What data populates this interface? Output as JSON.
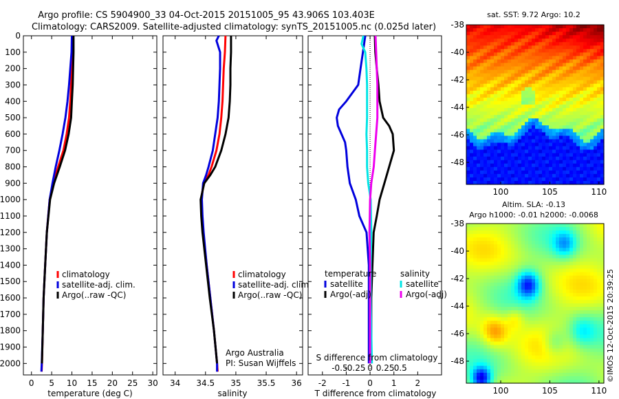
{
  "header": {
    "line1": "Argo profile: CS 5904900_33 04-Oct-2015 20151005_95 43.906S 103.403E",
    "line2": "Climatology: CARS2009. Satellite-adjusted climatology: synTS_20151005.nc (0.025d later)"
  },
  "credit": "©IMOS 12-Oct-2015 20:39:25",
  "colors": {
    "climatology": "#ff0000",
    "satellite": "#0000dd",
    "argo": "#000000",
    "satellite_s": "#00e5e5",
    "argo_s": "#ee00ee"
  },
  "chart_data": [
    {
      "id": "temperature",
      "type": "line",
      "xlabel": "temperature (deg C)",
      "ylabel": "",
      "xlim": [
        -2,
        31
      ],
      "ylim": [
        2070,
        0
      ],
      "xticks": [
        0,
        5,
        10,
        15,
        20,
        25,
        30
      ],
      "xtick_labels": [
        "0",
        "5",
        "10",
        "15",
        "20",
        "25",
        "30"
      ],
      "yticks": [
        0,
        100,
        200,
        300,
        400,
        500,
        600,
        700,
        800,
        900,
        1000,
        1100,
        1200,
        1300,
        1400,
        1500,
        1600,
        1700,
        1800,
        1900,
        2000
      ],
      "ytick_labels": [
        "0",
        "100",
        "200",
        "300",
        "400",
        "500",
        "600",
        "700",
        "800",
        "900",
        "1000",
        "1100",
        "1200",
        "1300",
        "1400",
        "1500",
        "1600",
        "1700",
        "1800",
        "1900",
        "2000"
      ],
      "legend": [
        "climatology",
        "satellite-adj. clim.",
        "Argo(..raw -QC)"
      ],
      "legend_loc": "lower left",
      "series": [
        {
          "name": "climatology",
          "color": "#ff0000",
          "depth": [
            0,
            100,
            200,
            300,
            400,
            500,
            600,
            700,
            800,
            900,
            1000,
            1200,
            1400,
            1600,
            1800,
            2000,
            2050
          ],
          "values": [
            10.2,
            10.2,
            10.0,
            9.8,
            9.6,
            9.3,
            8.7,
            7.9,
            6.6,
            5.4,
            4.5,
            3.8,
            3.4,
            3.0,
            2.8,
            2.6,
            2.5
          ]
        },
        {
          "name": "satellite-adj. clim.",
          "color": "#0000dd",
          "depth": [
            0,
            100,
            200,
            300,
            400,
            500,
            600,
            700,
            800,
            900,
            1000,
            1200,
            1400,
            1600,
            1800,
            2000,
            2050
          ],
          "values": [
            10.0,
            9.9,
            9.6,
            9.3,
            8.9,
            8.4,
            7.7,
            6.9,
            6.0,
            5.2,
            4.5,
            3.8,
            3.4,
            3.0,
            2.8,
            2.55,
            2.45
          ]
        },
        {
          "name": "Argo(..raw -QC)",
          "color": "#000000",
          "depth": [
            0,
            100,
            200,
            300,
            400,
            500,
            600,
            700,
            800,
            900,
            1000,
            1200,
            1400,
            1600,
            1800,
            2000
          ],
          "values": [
            10.4,
            10.4,
            10.3,
            10.2,
            10.0,
            9.8,
            9.2,
            8.3,
            7.0,
            5.6,
            4.6,
            3.8,
            3.4,
            3.0,
            2.8,
            2.6
          ]
        }
      ]
    },
    {
      "id": "salinity",
      "type": "line",
      "xlabel": "salinity",
      "ylabel": "",
      "xlim": [
        33.8,
        36.1
      ],
      "ylim": [
        2070,
        0
      ],
      "xticks": [
        34,
        34.5,
        35,
        35.5,
        36
      ],
      "xtick_labels": [
        "34",
        "34.5",
        "35",
        "35.5",
        "36"
      ],
      "legend": [
        "climatology",
        "satellite-adj. clim.",
        "Argo(..raw -QC)"
      ],
      "legend_loc": "lower left",
      "annotation": [
        "Argo Australia",
        "PI: Susan Wijffels"
      ],
      "series": [
        {
          "name": "climatology",
          "color": "#ff0000",
          "depth": [
            0,
            100,
            200,
            300,
            400,
            500,
            600,
            700,
            800,
            850,
            900,
            1000,
            1100,
            1200,
            1400,
            1600,
            1800,
            2000,
            2050
          ],
          "values": [
            34.83,
            34.82,
            34.8,
            34.79,
            34.78,
            34.76,
            34.73,
            34.68,
            34.6,
            34.55,
            34.47,
            34.43,
            34.44,
            34.46,
            34.52,
            34.58,
            34.64,
            34.69,
            34.7
          ]
        },
        {
          "name": "satellite-adj. clim.",
          "color": "#0000dd",
          "depth": [
            0,
            30,
            100,
            200,
            300,
            400,
            500,
            600,
            700,
            800,
            850,
            900,
            1000,
            1100,
            1200,
            1400,
            1600,
            1800,
            2000,
            2050
          ],
          "values": [
            34.72,
            34.68,
            34.74,
            34.74,
            34.73,
            34.72,
            34.7,
            34.66,
            34.62,
            34.55,
            34.51,
            34.46,
            34.44,
            34.45,
            34.47,
            34.52,
            34.58,
            34.64,
            34.69,
            34.69
          ]
        },
        {
          "name": "Argo(..raw -QC)",
          "color": "#000000",
          "depth": [
            0,
            100,
            200,
            300,
            400,
            500,
            600,
            700,
            800,
            850,
            900,
            1000,
            1100,
            1200,
            1400,
            1600,
            1800,
            2000
          ],
          "values": [
            34.92,
            34.92,
            34.91,
            34.91,
            34.9,
            34.88,
            34.83,
            34.76,
            34.66,
            34.58,
            34.48,
            34.42,
            34.43,
            34.45,
            34.51,
            34.57,
            34.64,
            34.69
          ]
        }
      ]
    },
    {
      "id": "difference",
      "type": "line",
      "xlabel": "T difference from climatology",
      "top_label": "S difference from climatology",
      "ylabel": "",
      "xlim": [
        -2.6,
        3
      ],
      "ylim": [
        2070,
        0
      ],
      "xticks": [
        -2,
        -1,
        0,
        1,
        2
      ],
      "xtick_labels": [
        "-2",
        "-1",
        "0",
        "1",
        "2"
      ],
      "s_ticks": [
        -0.5,
        -0.25,
        0,
        0.25,
        0.5
      ],
      "s_tick_labels": [
        "-0.5",
        "-0.25",
        "0",
        "0.25",
        "0.5"
      ],
      "legend_groups": [
        {
          "title": "temperature",
          "items": [
            "satellite",
            "Argo(-adj)"
          ]
        },
        {
          "title": "salinity",
          "items": [
            "satellite",
            "Argo(-adj)"
          ]
        }
      ],
      "series": [
        {
          "name": "satellite",
          "group": "temperature",
          "color": "#0000dd",
          "depth": [
            0,
            100,
            200,
            300,
            400,
            450,
            500,
            550,
            600,
            650,
            700,
            800,
            900,
            1000,
            1100,
            1200,
            1400,
            1600,
            1800,
            2000
          ],
          "values": [
            -0.2,
            -0.3,
            -0.4,
            -0.5,
            -1.0,
            -1.3,
            -1.4,
            -1.35,
            -1.2,
            -1.05,
            -1.0,
            -0.95,
            -0.85,
            -0.6,
            -0.45,
            -0.15,
            -0.05,
            -0.05,
            -0.05,
            -0.05
          ]
        },
        {
          "name": "Argo(-adj)",
          "group": "temperature",
          "color": "#000000",
          "depth": [
            0,
            100,
            200,
            300,
            400,
            500,
            550,
            600,
            700,
            800,
            900,
            1000,
            1100,
            1200,
            1400,
            1600,
            1800,
            2000
          ],
          "values": [
            0.2,
            0.22,
            0.28,
            0.35,
            0.4,
            0.55,
            0.8,
            0.95,
            1.0,
            0.8,
            0.6,
            0.4,
            0.28,
            0.15,
            0.1,
            0.05,
            0.05,
            0.05
          ]
        },
        {
          "name": "satellite",
          "group": "salinity",
          "color": "#00e5e5",
          "depth": [
            0,
            50,
            100,
            200,
            300,
            400,
            500,
            600,
            700,
            800,
            900,
            1000,
            1200,
            1400,
            1600,
            1800,
            2000
          ],
          "values": [
            -0.11,
            -0.14,
            -0.08,
            -0.06,
            -0.05,
            -0.05,
            -0.05,
            -0.06,
            -0.05,
            -0.05,
            -0.03,
            0.01,
            0.02,
            0.01,
            0.01,
            0.02,
            0.03
          ]
        },
        {
          "name": "Argo(-adj)",
          "group": "salinity",
          "color": "#ee00ee",
          "depth": [
            0,
            100,
            200,
            300,
            400,
            500,
            600,
            700,
            800,
            900,
            1000,
            1200,
            1400,
            1600,
            1800,
            2000
          ],
          "values": [
            0.09,
            0.1,
            0.11,
            0.12,
            0.12,
            0.12,
            0.1,
            0.08,
            0.06,
            0.02,
            0.0,
            -0.01,
            0.0,
            0.0,
            0.0,
            0.0
          ]
        }
      ]
    },
    {
      "id": "sst-map",
      "type": "heatmap",
      "title": "sat. SST: 9.72  Argo: 10.2",
      "xlim": [
        96.5,
        110.5
      ],
      "ylim": [
        -49.6,
        -38
      ],
      "xticks": [
        100,
        105,
        110
      ],
      "xtick_labels": [
        "100",
        "105",
        "110"
      ],
      "yticks": [
        -38,
        -40,
        -42,
        -44,
        -46,
        -48
      ],
      "ytick_labels": [
        "-38",
        "-40",
        "-42",
        "-44",
        "-46",
        "-48"
      ],
      "colormap": "jet"
    },
    {
      "id": "sla-map",
      "type": "heatmap",
      "title_lines": [
        "Altim. SLA: -0.13",
        "Argo h1000: -0.01  h2000: -0.0068"
      ],
      "xlim": [
        96.5,
        110.5
      ],
      "ylim": [
        -49.6,
        -38
      ],
      "xticks": [
        100,
        105,
        110
      ],
      "xtick_labels": [
        "100",
        "105",
        "110"
      ],
      "yticks": [
        -38,
        -40,
        -42,
        -44,
        -46,
        -48
      ],
      "ytick_labels": [
        "-38",
        "-40",
        "-42",
        "-44",
        "-46",
        "-48"
      ],
      "colormap": "jet"
    }
  ]
}
